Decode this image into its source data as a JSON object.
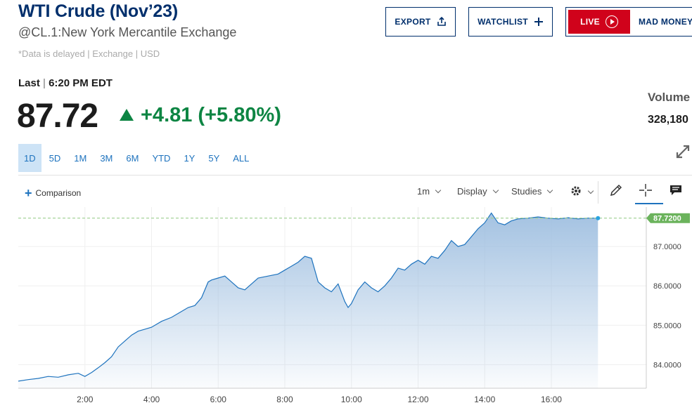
{
  "header": {
    "title": "WTI Crude (Nov’23)",
    "subtitle": "@CL.1:New York Mercantile Exchange",
    "delayed_note": "*Data is delayed | Exchange | USD",
    "export_label": "EXPORT",
    "watchlist_label": "WATCHLIST",
    "live_label": "LIVE",
    "mad_money_label": "MAD MONEY"
  },
  "quote": {
    "last_label": "Last",
    "last_sep": " | ",
    "last_time": "6:20 PM EDT",
    "price": "87.72",
    "change": "+4.81 (+5.80%)",
    "direction": "up",
    "up_color": "#0d8543",
    "volume_label": "Volume",
    "volume_value": "328,180"
  },
  "ranges": [
    "1D",
    "5D",
    "1M",
    "3M",
    "6M",
    "YTD",
    "1Y",
    "5Y",
    "ALL"
  ],
  "active_range": "1D",
  "toolbar": {
    "comparison_label": "Comparison",
    "interval_label": "1m",
    "display_label": "Display",
    "studies_label": "Studies"
  },
  "chart_data": {
    "type": "area",
    "title": "",
    "xlabel": "",
    "ylabel": "",
    "x_ticks": [
      "2:00",
      "4:00",
      "6:00",
      "8:00",
      "10:00",
      "12:00",
      "14:00",
      "16:00"
    ],
    "y_ticks": [
      "84.0000",
      "85.0000",
      "86.0000",
      "87.0000"
    ],
    "ylim": [
      83.4,
      88.0
    ],
    "last_value_label": "87.7200",
    "last_value": 87.72,
    "line_color": "#1e73be",
    "fill_color_top": "#9fbfe0",
    "series": [
      {
        "x": [
          0.0,
          0.3,
          0.6,
          0.9,
          1.2,
          1.5,
          1.8,
          2.0,
          2.2,
          2.4,
          2.6,
          2.8,
          3.0,
          3.2,
          3.4,
          3.6,
          3.8,
          4.0,
          4.3,
          4.6,
          4.9,
          5.1,
          5.3,
          5.5,
          5.7,
          5.8,
          6.0,
          6.2,
          6.4,
          6.6,
          6.8,
          7.0,
          7.2,
          7.5,
          7.8,
          8.0,
          8.2,
          8.4,
          8.6,
          8.8,
          9.0,
          9.2,
          9.4,
          9.6,
          9.8,
          9.9,
          10.0,
          10.2,
          10.4,
          10.6,
          10.8,
          11.0,
          11.2,
          11.4,
          11.6,
          11.8,
          12.0,
          12.2,
          12.4,
          12.6,
          12.8,
          13.0,
          13.2,
          13.4,
          13.6,
          13.8,
          14.0,
          14.2,
          14.4,
          14.6,
          14.8,
          15.0,
          15.3,
          15.6,
          15.9,
          16.2,
          16.5,
          16.8,
          17.1,
          17.4
        ],
        "y": [
          83.58,
          83.62,
          83.65,
          83.7,
          83.68,
          83.74,
          83.78,
          83.7,
          83.8,
          83.92,
          84.05,
          84.2,
          84.45,
          84.6,
          84.75,
          84.85,
          84.9,
          84.95,
          85.1,
          85.2,
          85.35,
          85.45,
          85.5,
          85.7,
          86.1,
          86.15,
          86.2,
          86.25,
          86.1,
          85.95,
          85.9,
          86.05,
          86.2,
          86.25,
          86.3,
          86.4,
          86.5,
          86.6,
          86.75,
          86.7,
          86.1,
          85.95,
          85.85,
          86.05,
          85.6,
          85.45,
          85.55,
          85.9,
          86.1,
          85.95,
          85.85,
          86.0,
          86.2,
          86.45,
          86.4,
          86.55,
          86.65,
          86.55,
          86.75,
          86.7,
          86.9,
          87.15,
          87.0,
          87.05,
          87.25,
          87.45,
          87.6,
          87.85,
          87.6,
          87.55,
          87.65,
          87.7,
          87.72,
          87.75,
          87.72,
          87.7,
          87.73,
          87.7,
          87.72,
          87.72
        ]
      }
    ]
  }
}
